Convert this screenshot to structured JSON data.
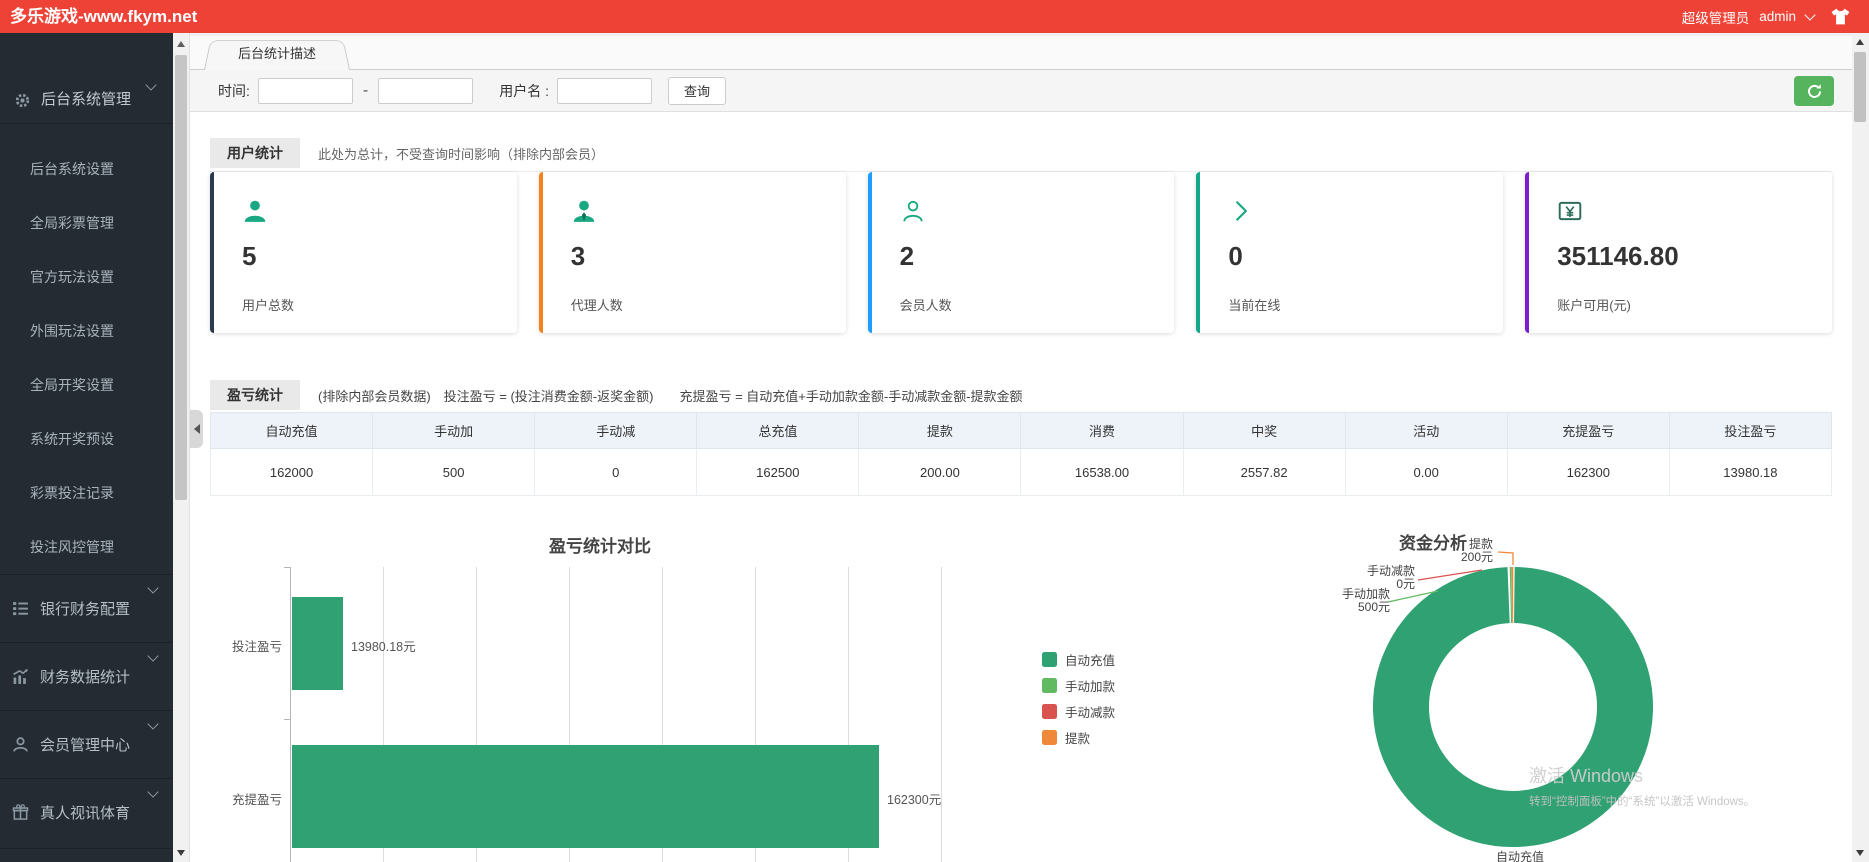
{
  "header": {
    "title": "多乐游戏-www.fkym.net",
    "role": "超级管理员",
    "user": "admin"
  },
  "sidebar": {
    "parent": {
      "label": "后台系统管理"
    },
    "submenu": [
      "后台系统设置",
      "全局彩票管理",
      "官方玩法设置",
      "外围玩法设置",
      "全局开奖设置",
      "系统开奖预设",
      "彩票投注记录",
      "投注风控管理"
    ],
    "groups": [
      {
        "label": "银行财务配置",
        "icon": "list-icon"
      },
      {
        "label": "财务数据统计",
        "icon": "chart-icon"
      },
      {
        "label": "会员管理中心",
        "icon": "user-icon"
      },
      {
        "label": "真人视讯体育",
        "icon": "gift-icon"
      }
    ]
  },
  "tabs": {
    "active": "后台统计描述"
  },
  "filter": {
    "time_label": "时间:",
    "separator": "-",
    "username_label": "用户名 :",
    "query_button": "查询"
  },
  "user_stats": {
    "badge": "用户统计",
    "note": "此处为总计，不受查询时间影响（排除内部会员）",
    "cards": [
      {
        "value": "5",
        "label": "用户总数",
        "accent": "#2b3a4d",
        "icon": "user-solid-icon"
      },
      {
        "value": "3",
        "label": "代理人数",
        "accent": "#f5821f",
        "icon": "agent-icon"
      },
      {
        "value": "2",
        "label": "会员人数",
        "accent": "#1e9fff",
        "icon": "member-outline-icon"
      },
      {
        "value": "0",
        "label": "当前在线",
        "accent": "#13a88a",
        "icon": "chevron-right-icon"
      },
      {
        "value": "351146.80",
        "label": "账户可用(元)",
        "accent": "#7a1fd0",
        "icon": "money-icon"
      }
    ]
  },
  "profit": {
    "badge": "盈亏统计",
    "note": "(排除内部会员数据)　投注盈亏 = (投注消费金额-返奖金额)　　充提盈亏 = 自动充值+手动加款金额-手动减款金额-提款金额",
    "table": {
      "columns": [
        "自动充值",
        "手动加",
        "手动减",
        "总充值",
        "提款",
        "消费",
        "中奖",
        "活动",
        "充提盈亏",
        "投注盈亏"
      ],
      "rows": [
        [
          "162000",
          "500",
          "0",
          "162500",
          "200.00",
          "16538.00",
          "2557.82",
          "0.00",
          "162300",
          "13980.18"
        ]
      ]
    }
  },
  "chart_data": [
    {
      "type": "bar",
      "orientation": "horizontal",
      "title": "盈亏统计对比",
      "categories": [
        "投注盈亏",
        "充提盈亏"
      ],
      "values": [
        13980.18,
        162300
      ],
      "value_labels": [
        "13980.18元",
        "162300元"
      ],
      "xlim": [
        0,
        180000
      ],
      "bar_color": "#2fa172",
      "grid": true,
      "legend": {
        "position": "right",
        "items": [
          {
            "name": "自动充值",
            "color": "#2fa172"
          },
          {
            "name": "手动加款",
            "color": "#61b961"
          },
          {
            "name": "手动减款",
            "color": "#d9534f"
          },
          {
            "name": "提款",
            "color": "#f0883a"
          }
        ]
      }
    },
    {
      "type": "pie",
      "donut": true,
      "title": "资金分析",
      "slices": [
        {
          "name": "自动充值",
          "value": 162000,
          "color": "#2fa172"
        },
        {
          "name": "手动加款",
          "value": 500,
          "color": "#61b961"
        },
        {
          "name": "手动减款",
          "value": 0,
          "color": "#d9534f"
        },
        {
          "name": "提款",
          "value": 200,
          "color": "#f0883a"
        }
      ],
      "callouts": [
        {
          "name": "提款",
          "value_label": "200元"
        },
        {
          "name": "手动减款",
          "value_label": "0元"
        },
        {
          "name": "手动加款",
          "value_label": "500元"
        },
        {
          "name": "自动充值",
          "value_label": ""
        }
      ]
    }
  ],
  "watermark": {
    "line1": "激活 Windows",
    "line2": "转到“控制面板”中的“系统”以激活 Windows。"
  }
}
